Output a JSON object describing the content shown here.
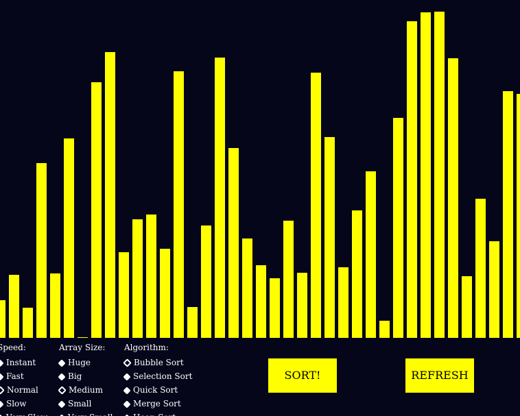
{
  "colors": {
    "background": "#05061a",
    "bar": "#ffff00",
    "button": "#ffff00",
    "text": "#ffffff"
  },
  "visualizer": {
    "bar_values": [
      55,
      92,
      44,
      255,
      94,
      291,
      1,
      373,
      417,
      125,
      173,
      180,
      130,
      389,
      45,
      164,
      409,
      277,
      145,
      106,
      87,
      171,
      95,
      387,
      293,
      103,
      186,
      243,
      25,
      321,
      462,
      475,
      476,
      408,
      90,
      203,
      141,
      360,
      356
    ],
    "max_value": 493
  },
  "controls": {
    "speed": {
      "title": "Speed:",
      "options": [
        {
          "label": "Instant",
          "selected": false
        },
        {
          "label": "Fast",
          "selected": false
        },
        {
          "label": "Normal",
          "selected": true
        },
        {
          "label": "Slow",
          "selected": false
        },
        {
          "label": "Very Slow",
          "selected": false
        }
      ]
    },
    "array_size": {
      "title": "Array Size:",
      "options": [
        {
          "label": "Huge",
          "selected": false
        },
        {
          "label": "Big",
          "selected": false
        },
        {
          "label": "Medium",
          "selected": true
        },
        {
          "label": "Small",
          "selected": false
        },
        {
          "label": "Very Small",
          "selected": false
        }
      ]
    },
    "algorithm": {
      "title": "Algorithm:",
      "options": [
        {
          "label": "Bubble Sort",
          "selected": true
        },
        {
          "label": "Selection Sort",
          "selected": false
        },
        {
          "label": "Quick Sort",
          "selected": false
        },
        {
          "label": "Merge Sort",
          "selected": false
        },
        {
          "label": "Heap Sort",
          "selected": false
        }
      ]
    }
  },
  "buttons": {
    "sort_label": "SORT!",
    "refresh_label": "REFRESH"
  }
}
